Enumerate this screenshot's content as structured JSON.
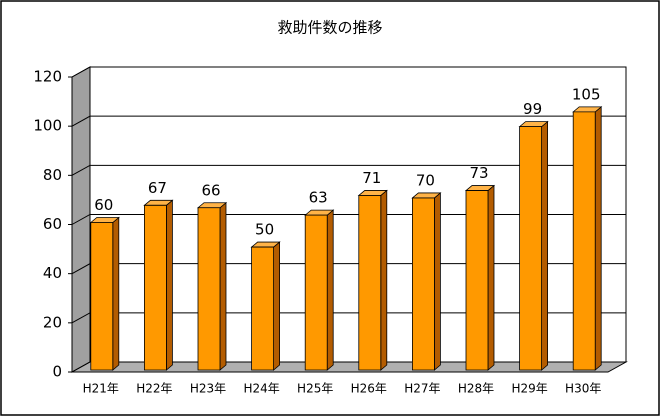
{
  "chart_data": {
    "type": "bar",
    "title": "救助件数の推移",
    "categories": [
      "H21年",
      "H22年",
      "H23年",
      "H24年",
      "H25年",
      "H26年",
      "H27年",
      "H28年",
      "H29年",
      "H30年"
    ],
    "values": [
      60,
      67,
      66,
      50,
      63,
      71,
      70,
      73,
      99,
      105
    ],
    "color": "#ff9900",
    "ylim": [
      0,
      120
    ],
    "yticks": [
      0,
      20,
      40,
      60,
      80,
      100,
      120
    ],
    "grid": true
  }
}
